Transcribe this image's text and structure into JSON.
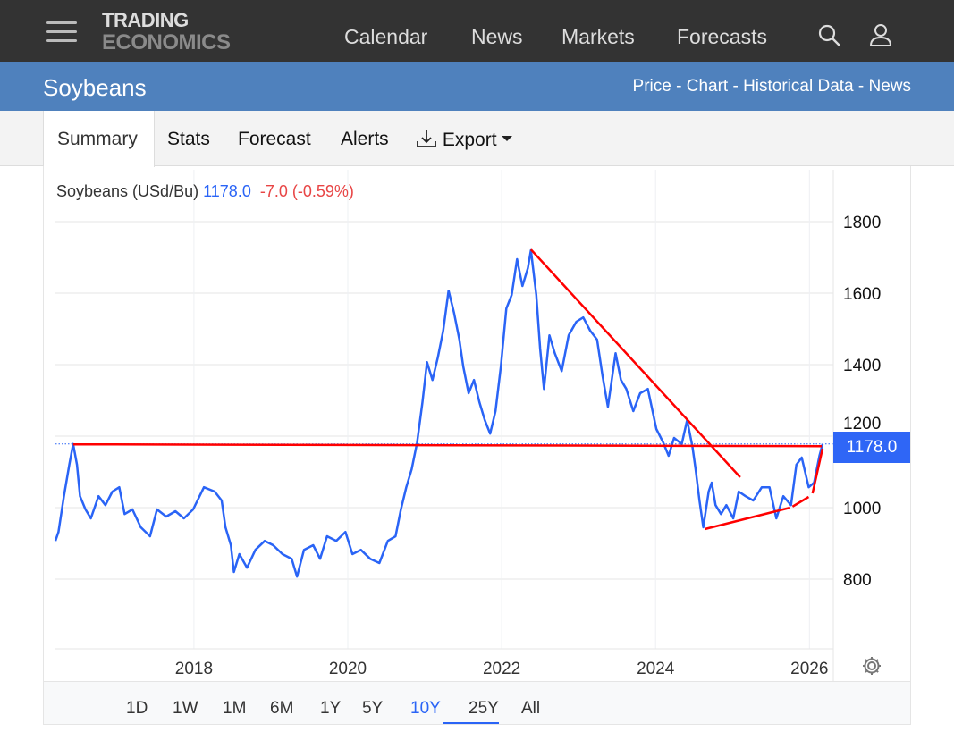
{
  "nav": {
    "logo_line1": "TRADING",
    "logo_line2": "ECONOMICS",
    "links": [
      "Calendar",
      "News",
      "Markets",
      "Forecasts"
    ],
    "icons": [
      "menu-icon",
      "search-icon",
      "user-icon"
    ]
  },
  "header": {
    "title": "Soybeans",
    "sublinks": "Price - Chart - Historical Data - News"
  },
  "tabs": {
    "summary": "Summary",
    "stats": "Stats",
    "forecast": "Forecast",
    "alerts": "Alerts",
    "export": "Export"
  },
  "legend": {
    "name": "Soybeans (USd/Bu)",
    "value": "1178.0",
    "change": "-7.0 (-0.59%)"
  },
  "price_label": "1178.0",
  "ranges": [
    "1D",
    "1W",
    "1M",
    "6M",
    "1Y",
    "5Y",
    "10Y",
    "25Y",
    "All"
  ],
  "active_range": "10Y",
  "colors": {
    "series": "#2a64f6",
    "trend": "#ff0000",
    "nav": "#333333",
    "header": "#4f81bd"
  },
  "chart_data": {
    "type": "line",
    "title": "Soybeans (USd/Bu)",
    "xlabel": "",
    "ylabel": "",
    "xlim": [
      2016.2,
      2026.31
    ],
    "ylim": [
      605,
      1945
    ],
    "xticks": [
      2018,
      2020,
      2022,
      2024,
      2026
    ],
    "yticks": [
      800,
      1000,
      1200,
      1400,
      1600,
      1800
    ],
    "last_value": 1178.0,
    "series": [
      {
        "name": "Soybeans",
        "points": [
          [
            2016.2,
            907
          ],
          [
            2016.24,
            932
          ],
          [
            2016.31,
            1032
          ],
          [
            2016.38,
            1120
          ],
          [
            2016.43,
            1178
          ],
          [
            2016.48,
            1120
          ],
          [
            2016.52,
            1032
          ],
          [
            2016.59,
            995
          ],
          [
            2016.66,
            970
          ],
          [
            2016.76,
            1032
          ],
          [
            2016.85,
            1007
          ],
          [
            2016.94,
            1045
          ],
          [
            2017.03,
            1057
          ],
          [
            2017.1,
            982
          ],
          [
            2017.2,
            995
          ],
          [
            2017.31,
            945
          ],
          [
            2017.43,
            920
          ],
          [
            2017.52,
            995
          ],
          [
            2017.64,
            975
          ],
          [
            2017.76,
            990
          ],
          [
            2017.87,
            970
          ],
          [
            2017.99,
            995
          ],
          [
            2018.13,
            1057
          ],
          [
            2018.27,
            1045
          ],
          [
            2018.36,
            1020
          ],
          [
            2018.41,
            945
          ],
          [
            2018.48,
            895
          ],
          [
            2018.52,
            820
          ],
          [
            2018.59,
            870
          ],
          [
            2018.69,
            832
          ],
          [
            2018.8,
            882
          ],
          [
            2018.92,
            907
          ],
          [
            2019.03,
            895
          ],
          [
            2019.15,
            870
          ],
          [
            2019.27,
            857
          ],
          [
            2019.34,
            807
          ],
          [
            2019.43,
            882
          ],
          [
            2019.55,
            895
          ],
          [
            2019.64,
            857
          ],
          [
            2019.73,
            920
          ],
          [
            2019.85,
            907
          ],
          [
            2019.97,
            932
          ],
          [
            2020.06,
            870
          ],
          [
            2020.17,
            882
          ],
          [
            2020.29,
            857
          ],
          [
            2020.41,
            845
          ],
          [
            2020.52,
            907
          ],
          [
            2020.62,
            920
          ],
          [
            2020.69,
            995
          ],
          [
            2020.76,
            1057
          ],
          [
            2020.83,
            1107
          ],
          [
            2020.9,
            1182
          ],
          [
            2020.97,
            1295
          ],
          [
            2021.03,
            1407
          ],
          [
            2021.1,
            1357
          ],
          [
            2021.17,
            1420
          ],
          [
            2021.24,
            1495
          ],
          [
            2021.31,
            1607
          ],
          [
            2021.38,
            1545
          ],
          [
            2021.45,
            1470
          ],
          [
            2021.5,
            1395
          ],
          [
            2021.57,
            1320
          ],
          [
            2021.64,
            1357
          ],
          [
            2021.71,
            1295
          ],
          [
            2021.78,
            1245
          ],
          [
            2021.85,
            1207
          ],
          [
            2021.92,
            1270
          ],
          [
            2021.99,
            1395
          ],
          [
            2022.06,
            1557
          ],
          [
            2022.13,
            1595
          ],
          [
            2022.2,
            1695
          ],
          [
            2022.27,
            1620
          ],
          [
            2022.34,
            1670
          ],
          [
            2022.38,
            1720
          ],
          [
            2022.45,
            1595
          ],
          [
            2022.5,
            1445
          ],
          [
            2022.55,
            1332
          ],
          [
            2022.62,
            1482
          ],
          [
            2022.69,
            1432
          ],
          [
            2022.78,
            1382
          ],
          [
            2022.87,
            1482
          ],
          [
            2022.97,
            1520
          ],
          [
            2023.06,
            1532
          ],
          [
            2023.15,
            1495
          ],
          [
            2023.24,
            1470
          ],
          [
            2023.31,
            1370
          ],
          [
            2023.38,
            1282
          ],
          [
            2023.48,
            1432
          ],
          [
            2023.55,
            1357
          ],
          [
            2023.62,
            1332
          ],
          [
            2023.71,
            1270
          ],
          [
            2023.8,
            1320
          ],
          [
            2023.9,
            1332
          ],
          [
            2024.01,
            1220
          ],
          [
            2024.1,
            1182
          ],
          [
            2024.17,
            1145
          ],
          [
            2024.24,
            1195
          ],
          [
            2024.34,
            1178
          ],
          [
            2024.41,
            1245
          ],
          [
            2024.48,
            1170
          ],
          [
            2024.52,
            1107
          ],
          [
            2024.57,
            1020
          ],
          [
            2024.62,
            945
          ],
          [
            2024.69,
            1045
          ],
          [
            2024.73,
            1070
          ],
          [
            2024.78,
            1007
          ],
          [
            2024.85,
            982
          ],
          [
            2024.92,
            1007
          ],
          [
            2025.01,
            970
          ],
          [
            2025.08,
            1045
          ],
          [
            2025.17,
            1032
          ],
          [
            2025.27,
            1020
          ],
          [
            2025.38,
            1057
          ],
          [
            2025.48,
            1057
          ],
          [
            2025.57,
            970
          ],
          [
            2025.66,
            1032
          ],
          [
            2025.76,
            1007
          ],
          [
            2025.83,
            1120
          ],
          [
            2025.9,
            1140
          ],
          [
            2025.99,
            1057
          ],
          [
            2026.06,
            1070
          ],
          [
            2026.13,
            1145
          ],
          [
            2026.17,
            1178
          ]
        ]
      }
    ],
    "trendlines": [
      {
        "from": [
          2016.43,
          1177
        ],
        "to": [
          2026.16,
          1172
        ]
      },
      {
        "from": [
          2022.38,
          1722
        ],
        "to": [
          2025.1,
          1085
        ]
      },
      {
        "from": [
          2024.64,
          940
        ],
        "to": [
          2025.75,
          1000
        ]
      },
      {
        "from": [
          2025.78,
          1003
        ],
        "to": [
          2025.99,
          1030
        ]
      },
      {
        "from": [
          2026.04,
          1040
        ],
        "to": [
          2026.17,
          1165
        ]
      }
    ]
  }
}
